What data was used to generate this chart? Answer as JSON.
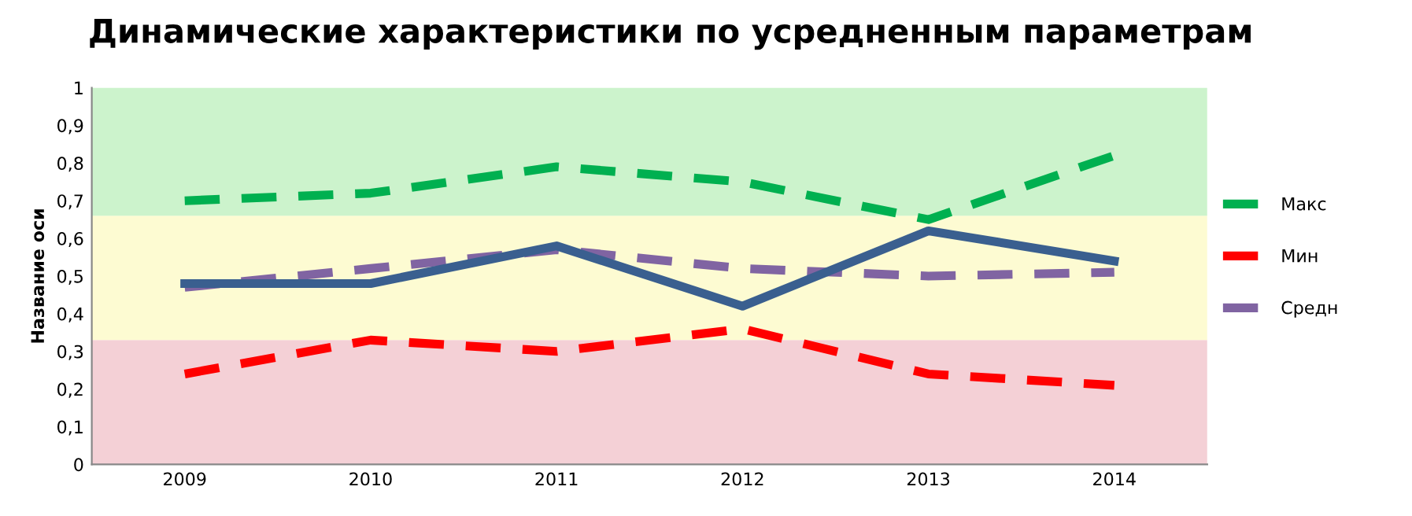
{
  "chart_data": {
    "type": "line",
    "title": "Динамические характеристики по усредненным параметрам",
    "ylabel": "Название оси",
    "categories": [
      "2009",
      "2010",
      "2011",
      "2012",
      "2013",
      "2014"
    ],
    "series": [
      {
        "name": "Макс",
        "color": "#00b050",
        "line_style": "dashed",
        "values": [
          0.7,
          0.72,
          0.79,
          0.75,
          0.65,
          0.82
        ]
      },
      {
        "name": "Мин",
        "color": "#ff0000",
        "line_style": "dashed",
        "values": [
          0.24,
          0.33,
          0.3,
          0.36,
          0.24,
          0.21
        ]
      },
      {
        "name": "Средн",
        "color": "#8064a2",
        "line_style": "dashed",
        "values": [
          0.47,
          0.52,
          0.57,
          0.52,
          0.5,
          0.51
        ]
      },
      {
        "color": "#3a5f8f",
        "line_style": "solid",
        "values": [
          0.48,
          0.48,
          0.58,
          0.42,
          0.62,
          0.54
        ]
      }
    ],
    "bands": [
      {
        "axis": "y",
        "from": 0,
        "to": 0.33,
        "color": "#f4d0d6"
      },
      {
        "axis": "y",
        "from": 0.33,
        "to": 0.66,
        "color": "#fdfbd2"
      },
      {
        "axis": "y",
        "from": 0.66,
        "to": 1,
        "color": "#ccf3cc"
      }
    ],
    "ylim": [
      0,
      1
    ],
    "yticks": [
      0,
      {
        "value": 0.1,
        "label": "0,1"
      },
      {
        "value": 0.2,
        "label": "0,2"
      },
      {
        "value": 0.3,
        "label": "0,3"
      },
      {
        "value": 0.4,
        "label": "0,4"
      },
      {
        "value": 0.5,
        "label": "0,5"
      },
      {
        "value": 0.6,
        "label": "0,6"
      },
      {
        "value": 0.7,
        "label": "0,7"
      },
      {
        "value": 0.8,
        "label": "0,8"
      },
      {
        "value": 0.9,
        "label": "0,9"
      },
      1
    ],
    "grid": false,
    "legend": "right",
    "marker": "none"
  }
}
